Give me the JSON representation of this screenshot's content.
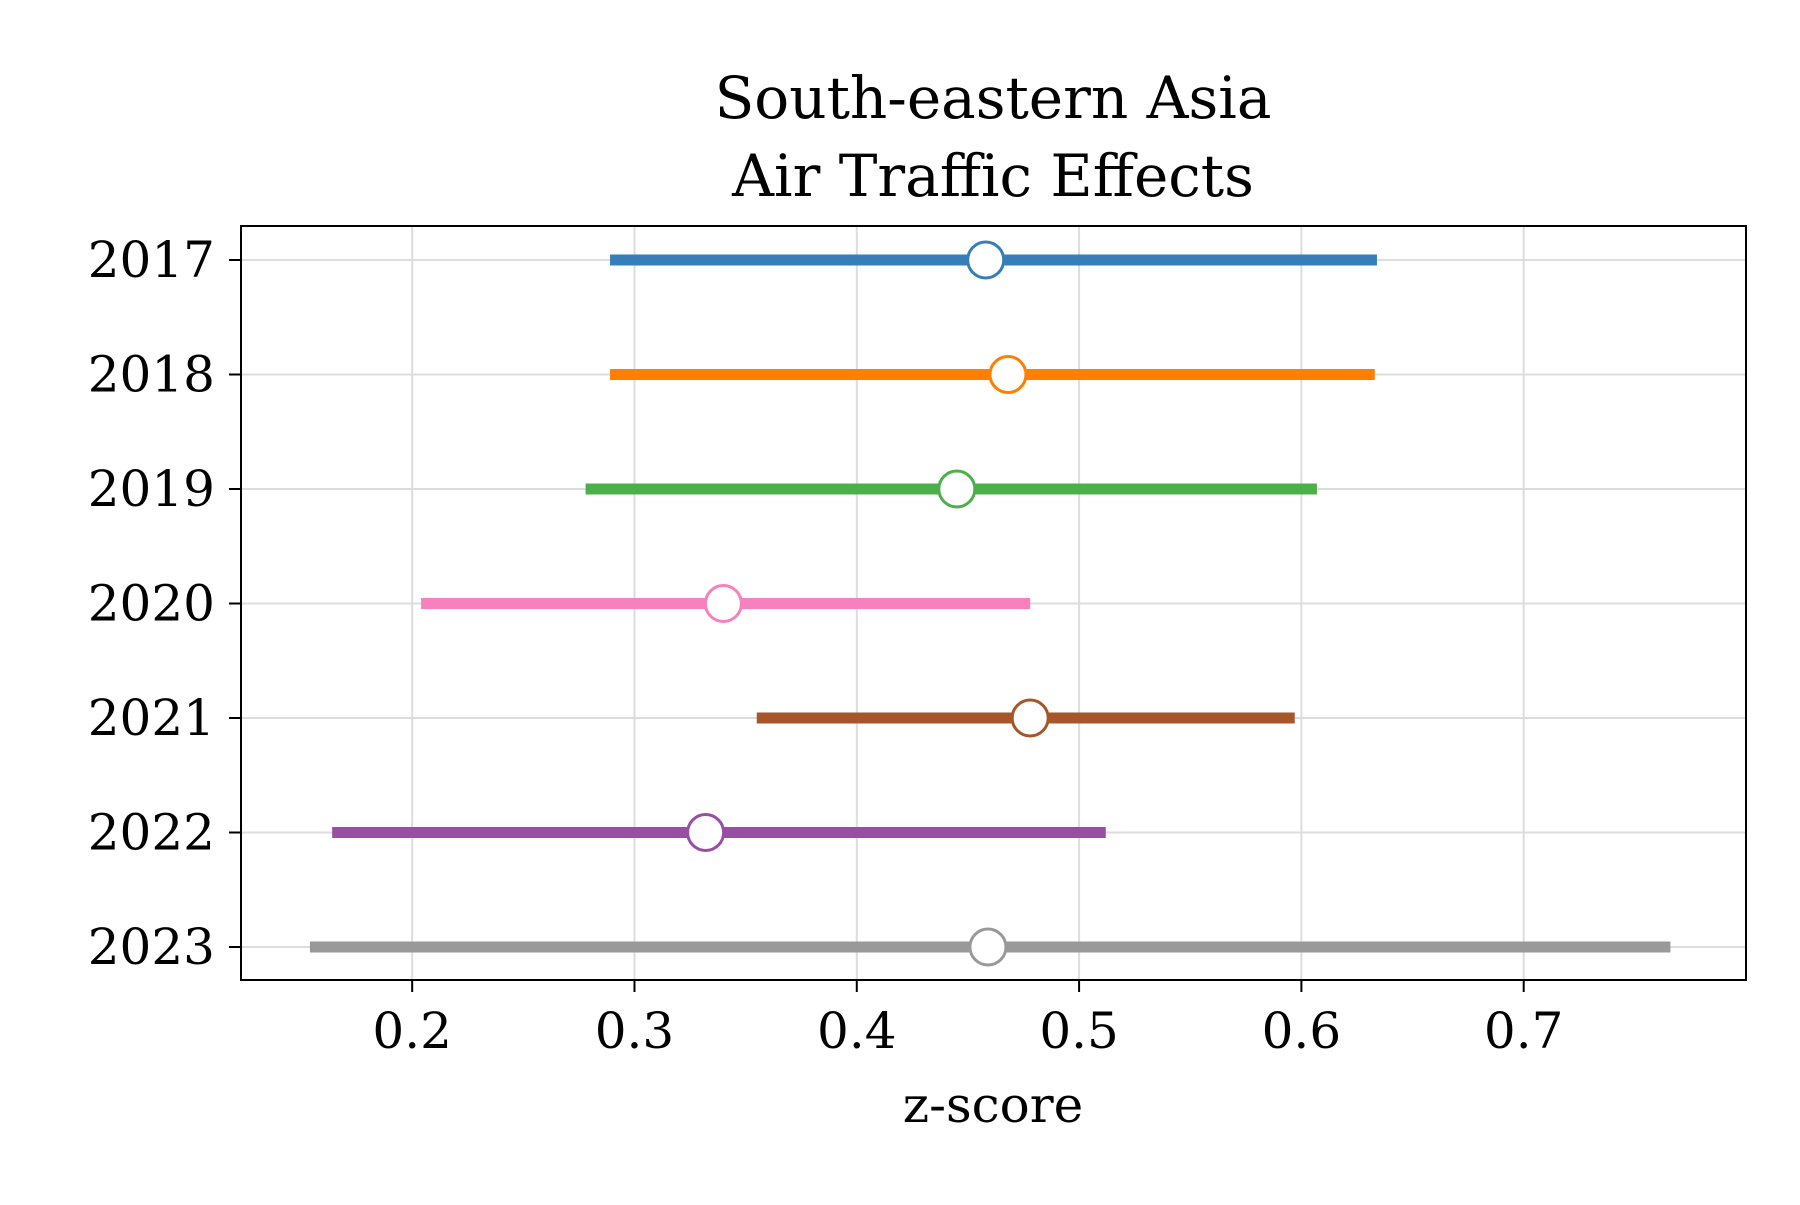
{
  "chart_data": {
    "type": "forest",
    "title_lines": [
      "South-eastern Asia",
      "Air Traffic Effects"
    ],
    "xlabel": "z-score",
    "ylabel": "",
    "xlim": [
      0.123,
      0.8
    ],
    "xticks": [
      0.2,
      0.3,
      0.4,
      0.5,
      0.6,
      0.7
    ],
    "xtick_labels": [
      "0.2",
      "0.3",
      "0.4",
      "0.5",
      "0.6",
      "0.7"
    ],
    "grid": true,
    "categories": [
      "2017",
      "2018",
      "2019",
      "2020",
      "2021",
      "2022",
      "2023"
    ],
    "series": [
      {
        "label": "2017",
        "estimate": 0.458,
        "low": 0.289,
        "high": 0.634,
        "color": "#377eb8"
      },
      {
        "label": "2018",
        "estimate": 0.468,
        "low": 0.289,
        "high": 0.633,
        "color": "#ff7f00"
      },
      {
        "label": "2019",
        "estimate": 0.445,
        "low": 0.278,
        "high": 0.607,
        "color": "#4daf4a"
      },
      {
        "label": "2020",
        "estimate": 0.34,
        "low": 0.204,
        "high": 0.478,
        "color": "#f781bf"
      },
      {
        "label": "2021",
        "estimate": 0.478,
        "low": 0.355,
        "high": 0.597,
        "color": "#a65628"
      },
      {
        "label": "2022",
        "estimate": 0.332,
        "low": 0.164,
        "high": 0.512,
        "color": "#984ea3"
      },
      {
        "label": "2023",
        "estimate": 0.459,
        "low": 0.154,
        "high": 0.766,
        "color": "#999999"
      }
    ]
  }
}
